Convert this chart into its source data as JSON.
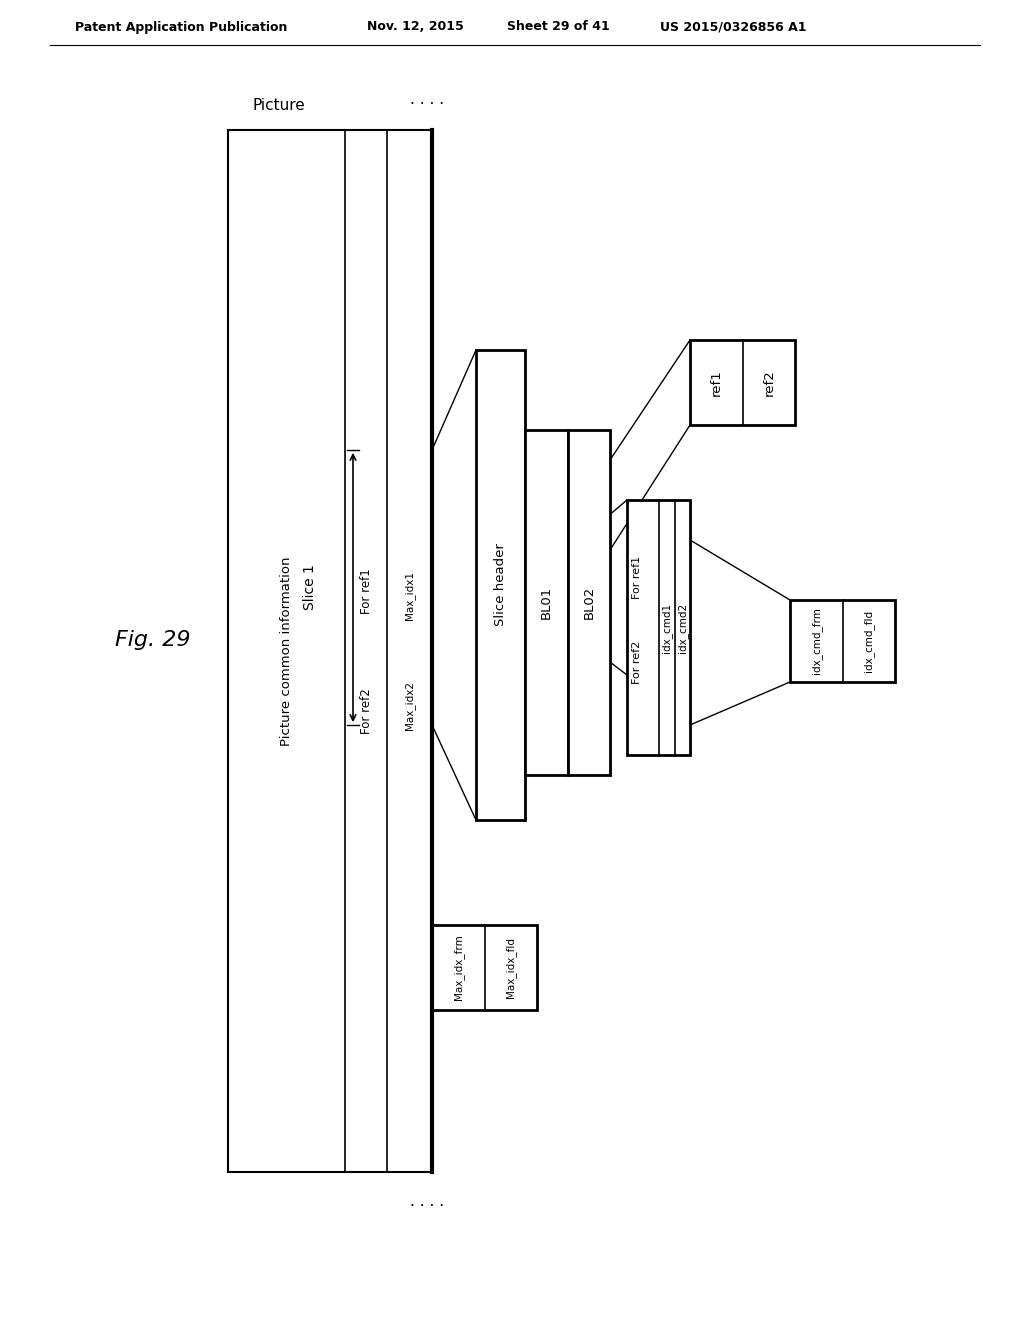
{
  "bg": "#ffffff",
  "lc": "#000000",
  "header_left": "Patent Application Publication",
  "header_date": "Nov. 12, 2015",
  "header_sheet": "Sheet 29 of 41",
  "header_patent": "US 2015/0326856 A1",
  "fig_label": "Fig. 29",
  "label_picture": "Picture",
  "label_pic_common": "Picture common information",
  "label_for_ref1": "For ref1",
  "label_for_ref2": "For ref2",
  "label_max_idx1": "Max_idx1",
  "label_max_idx2": "Max_idx2",
  "label_slice1": "Slice 1",
  "label_slice_header": "Slice header",
  "label_bl01": "BL01",
  "label_bl02": "BL02",
  "label_ref1": "ref1",
  "label_ref2": "ref2",
  "label_for_ref1_slice": "For ref1",
  "label_for_ref2_slice": "For ref2",
  "label_idx_cmd1": "idx_cmd1",
  "label_idx_cmd2": "idx_cmd2",
  "label_max_idx_frm": "Max_idx_frm",
  "label_max_idx_fld": "Max_idx_fld",
  "label_idx_cmd_frm": "idx_cmd_frm",
  "label_idx_cmd_fld": "idx_cmd_fld"
}
